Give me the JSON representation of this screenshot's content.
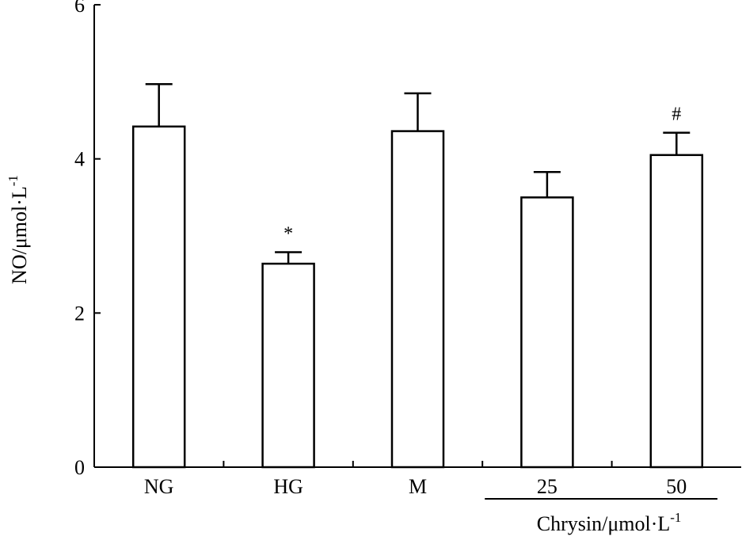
{
  "chart_data": {
    "type": "bar",
    "categories": [
      "NG",
      "HG",
      "M",
      "25",
      "50"
    ],
    "values": [
      4.42,
      2.64,
      4.36,
      3.5,
      4.05
    ],
    "errors": [
      0.55,
      0.15,
      0.49,
      0.33,
      0.29
    ],
    "annotations": [
      "",
      "*",
      "",
      "",
      "#"
    ],
    "ylabel": "NO/μmol·L",
    "ylabel_superscript": "-1",
    "xlabel": "",
    "ylim": [
      0,
      6
    ],
    "yticks": [
      0,
      2,
      4,
      6
    ],
    "grid": false,
    "group_label": {
      "text": "Chrysin/μmol·L",
      "superscript": "-1",
      "categories": [
        "25",
        "50"
      ]
    }
  }
}
